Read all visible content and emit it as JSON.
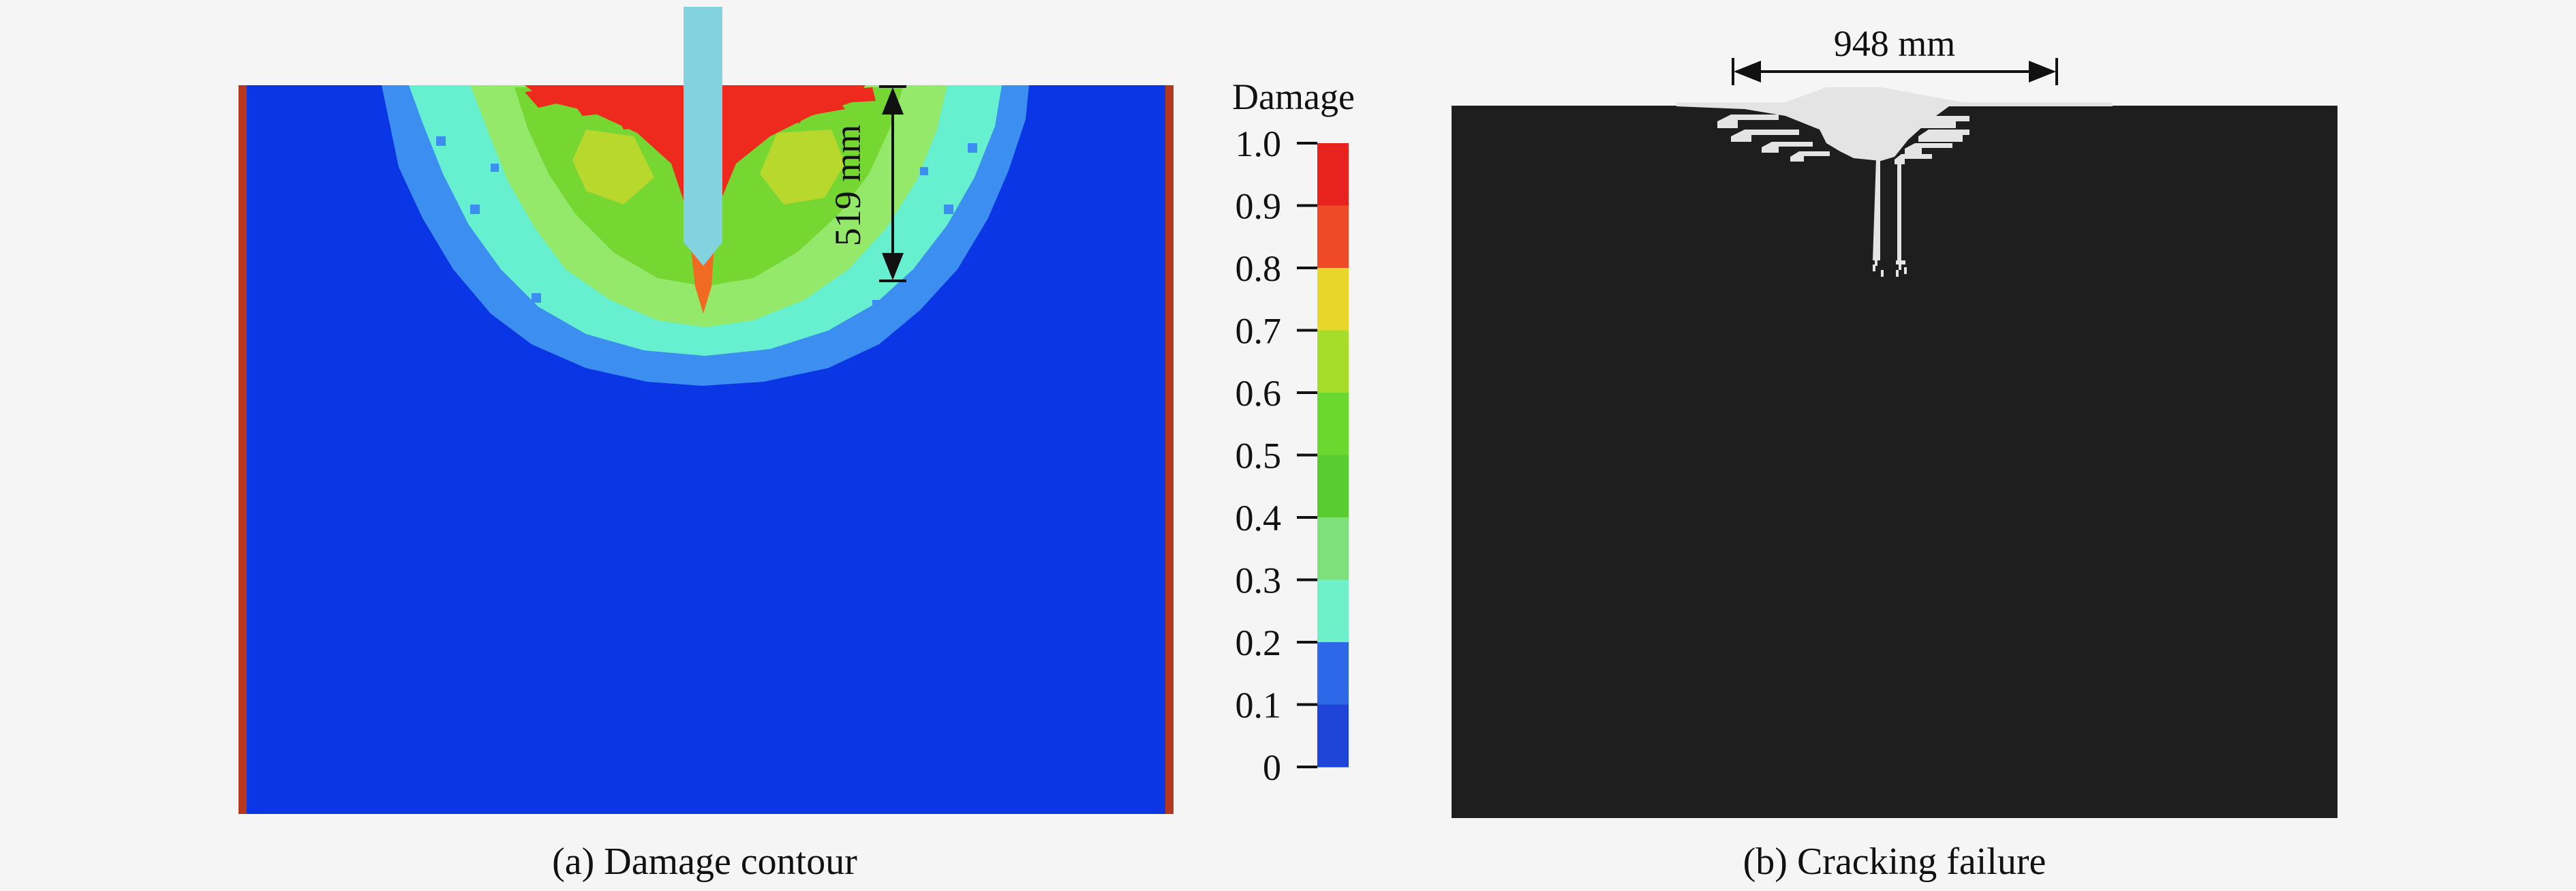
{
  "panel_a": {
    "caption": "(a) Damage contour",
    "dimension_label": "519 mm",
    "colorbar": {
      "title": "Damage",
      "ticks": [
        "1.0",
        "0.9",
        "0.8",
        "0.7",
        "0.6",
        "0.5",
        "0.4",
        "0.3",
        "0.2",
        "0.1",
        "0"
      ],
      "band_colors": [
        "#e8221e",
        "#ee4a26",
        "#e8d62a",
        "#a6dc2a",
        "#6ad82e",
        "#58cc30",
        "#7ee07a",
        "#6ef0c8",
        "#2c68e8",
        "#1e44d8"
      ]
    },
    "colors": {
      "background_blue": "#0a36e6",
      "wall": "#b5381e",
      "penetrator": "#82d2e0",
      "light_blue": "#3c8ef0",
      "cyan": "#66f0d0",
      "light_green": "#94e86a",
      "green": "#76d632",
      "yellow_green": "#b8d82e",
      "orange": "#f06a22",
      "red": "#ee2a1e"
    }
  },
  "panel_b": {
    "caption": "(b) Cracking failure",
    "dimension_label": "948 mm",
    "colors": {
      "block": "#1e1e1e",
      "crack": "#e4e4e4"
    }
  }
}
